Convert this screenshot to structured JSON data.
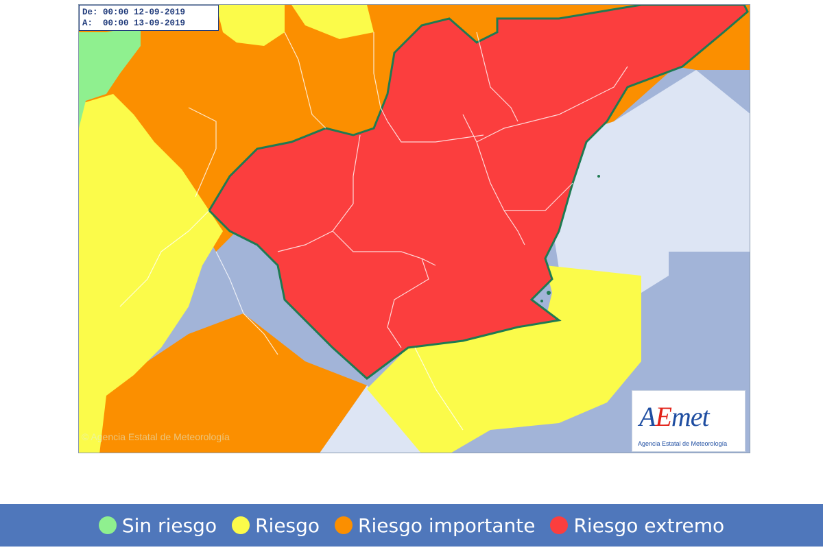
{
  "map": {
    "date_from_label": "De:",
    "date_from": "00:00 12-09-2019",
    "date_to_label": "A:",
    "date_to": "00:00 13-09-2019",
    "copyright": "© Agencia Estatal de Meteorología",
    "logo_text_a": "A",
    "logo_text_e": "E",
    "logo_text_rest": "met",
    "logo_subtitle": "Agencia Estatal de Meteorología",
    "colors": {
      "sea": "#a2b4d8",
      "coastal_sea": "#dde5f4",
      "sin_riesgo": "#8ff08f",
      "riesgo": "#fbfb4a",
      "riesgo_importante": "#fb8f00",
      "riesgo_extremo": "#fb3e3e",
      "border": "#1f7a52"
    }
  },
  "legend": {
    "items": [
      {
        "label": "Sin riesgo",
        "color": "#8ff08f"
      },
      {
        "label": "Riesgo",
        "color": "#fbfb4a"
      },
      {
        "label": "Riesgo importante",
        "color": "#fb8f00"
      },
      {
        "label": "Riesgo extremo",
        "color": "#fb3e3e"
      }
    ]
  }
}
